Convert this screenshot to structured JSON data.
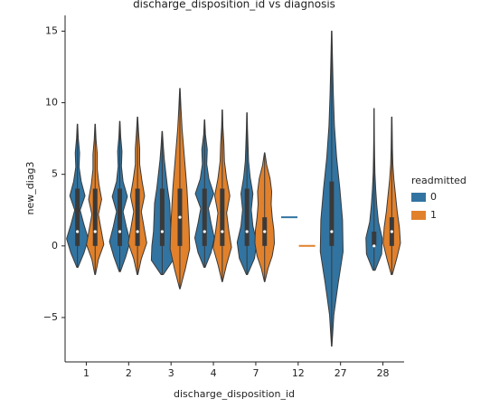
{
  "chart_data": {
    "type": "violin",
    "title": "discharge_disposition_id vs diagnosis",
    "x_label": "discharge_disposition_id",
    "y_label": "new_diag3",
    "categories": [
      "1",
      "2",
      "3",
      "4",
      "7",
      "12",
      "27",
      "28"
    ],
    "legend_title": "readmitted",
    "ylim": [
      -8.1,
      16.1
    ],
    "yticks": [
      {
        "value": -5,
        "label": "−5"
      },
      0,
      5,
      10,
      15
    ],
    "series": [
      {
        "name": "0",
        "color": "#3274a1",
        "violins": [
          {
            "min": -1.5,
            "max": 8.5,
            "q1": 0,
            "median": 1,
            "q3": 4,
            "shape": [
              0.05,
              0.6,
              1,
              0.6,
              0.25,
              0.7,
              0.35,
              0.15,
              0.2,
              0.08,
              0.02
            ]
          },
          {
            "min": -1.8,
            "max": 8.7,
            "q1": 0,
            "median": 1,
            "q3": 4,
            "shape": [
              0.05,
              0.55,
              0.95,
              0.6,
              0.3,
              0.7,
              0.3,
              0.15,
              0.2,
              0.08,
              0.02
            ]
          },
          {
            "min": -2,
            "max": 8,
            "q1": 0,
            "median": 1,
            "q3": 4,
            "shape": [
              0.1,
              1.0,
              0.95,
              0.8,
              0.75,
              0.7,
              0.5,
              0.35,
              0.2,
              0.1,
              0.02
            ]
          },
          {
            "min": -1.5,
            "max": 8.8,
            "q1": 0,
            "median": 1,
            "q3": 4,
            "shape": [
              0.05,
              0.6,
              0.9,
              0.6,
              0.35,
              0.85,
              0.4,
              0.2,
              0.25,
              0.08,
              0.02
            ]
          },
          {
            "min": -2,
            "max": 9.3,
            "q1": 0,
            "median": 1,
            "q3": 4,
            "shape": [
              0.05,
              0.7,
              0.9,
              0.55,
              0.4,
              0.55,
              0.3,
              0.15,
              0.1,
              0.05,
              0.02
            ]
          },
          {
            "min": 2,
            "max": 2,
            "q1": 2,
            "median": 2,
            "q3": 2
          },
          {
            "min": -7,
            "max": 15,
            "q1": 0,
            "median": 1,
            "q3": 4.5,
            "shape": [
              0.02,
              0.2,
              0.6,
              1.05,
              1.0,
              0.75,
              0.45,
              0.25,
              0.15,
              0.08,
              0.02
            ]
          },
          {
            "min": -1.7,
            "max": 9.6,
            "q1": 0,
            "median": 0,
            "q3": 1,
            "shape": [
              0.1,
              0.7,
              0.75,
              0.4,
              0.25,
              0.15,
              0.08,
              0.05,
              0.03,
              0.02,
              0.01
            ]
          }
        ]
      },
      {
        "name": "1",
        "color": "#e1812c",
        "violins": [
          {
            "min": -2,
            "max": 8.5,
            "q1": 0,
            "median": 1,
            "q3": 4,
            "shape": [
              0.03,
              0.3,
              0.8,
              0.55,
              0.3,
              0.6,
              0.35,
              0.2,
              0.2,
              0.08,
              0.02
            ]
          },
          {
            "min": -2,
            "max": 9,
            "q1": 0,
            "median": 1,
            "q3": 4,
            "shape": [
              0.03,
              0.35,
              0.85,
              0.6,
              0.35,
              0.65,
              0.4,
              0.2,
              0.2,
              0.1,
              0.02
            ]
          },
          {
            "min": -3,
            "max": 11,
            "q1": 0,
            "median": 2,
            "q3": 4,
            "shape": [
              0.02,
              0.5,
              0.9,
              0.85,
              0.75,
              0.65,
              0.5,
              0.35,
              0.2,
              0.1,
              0.02
            ]
          },
          {
            "min": -2.5,
            "max": 9.5,
            "q1": 0,
            "median": 1,
            "q3": 4,
            "shape": [
              0.02,
              0.4,
              0.85,
              0.6,
              0.4,
              0.7,
              0.4,
              0.2,
              0.15,
              0.06,
              0.02
            ]
          },
          {
            "min": -2.5,
            "max": 6.5,
            "q1": 0,
            "median": 1,
            "q3": 2,
            "shape": [
              0.02,
              0.3,
              0.7,
              0.9,
              0.85,
              0.7,
              0.6,
              0.65,
              0.5,
              0.2,
              0.02
            ]
          },
          {
            "min": 0,
            "max": 0,
            "q1": 0,
            "median": 0,
            "q3": 0
          },
          null,
          {
            "min": -2,
            "max": 9,
            "q1": 0,
            "median": 1,
            "q3": 2,
            "shape": [
              0.05,
              0.45,
              0.8,
              0.7,
              0.5,
              0.35,
              0.2,
              0.1,
              0.06,
              0.04,
              0.02
            ]
          }
        ]
      }
    ]
  }
}
